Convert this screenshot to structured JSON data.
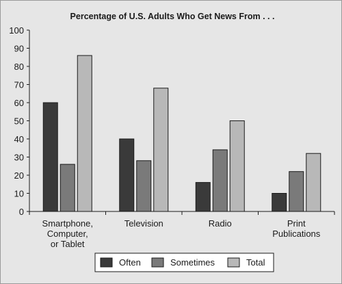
{
  "chart_data": {
    "type": "bar",
    "title": "Percentage of U.S. Adults Who Get News From . . .",
    "xlabel": "",
    "ylabel": "",
    "ylim": [
      0,
      100
    ],
    "yticks": [
      0,
      10,
      20,
      30,
      40,
      50,
      60,
      70,
      80,
      90,
      100
    ],
    "categories": [
      [
        "Smartphone,",
        "Computer,",
        "or Tablet"
      ],
      [
        "Television"
      ],
      [
        "Radio"
      ],
      [
        "Print",
        "Publications"
      ]
    ],
    "series": [
      {
        "name": "Often",
        "color": "#3a3a3a",
        "values": [
          60,
          40,
          16,
          10
        ]
      },
      {
        "name": "Sometimes",
        "color": "#7a7a7a",
        "values": [
          26,
          28,
          34,
          22
        ]
      },
      {
        "name": "Total",
        "color": "#b8b8b8",
        "values": [
          86,
          68,
          50,
          32
        ]
      }
    ],
    "grid": false,
    "legend": "bottom-center"
  }
}
